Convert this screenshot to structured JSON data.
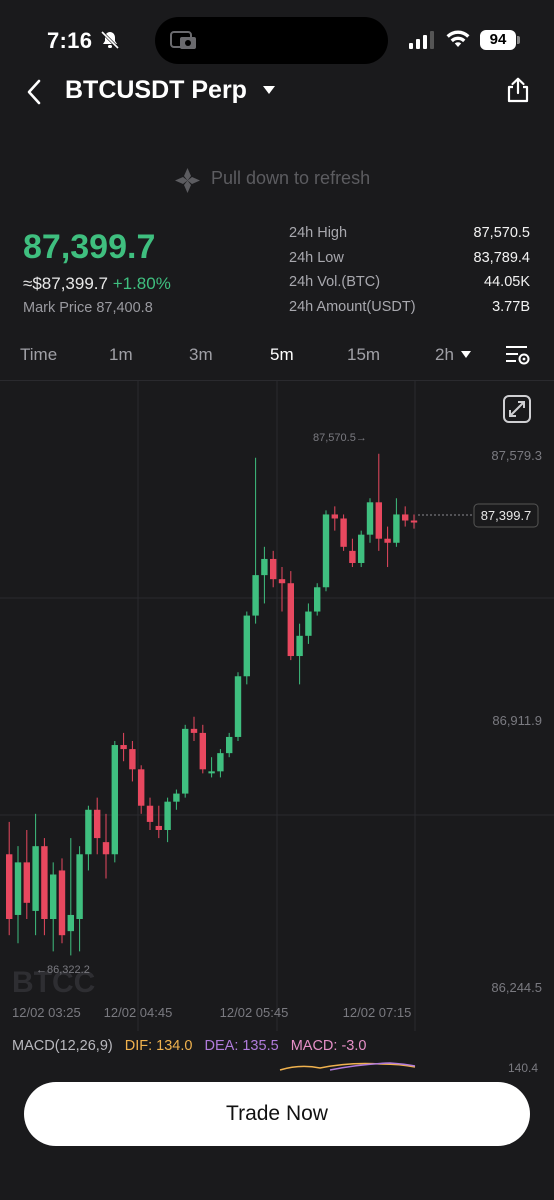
{
  "status_bar": {
    "time": "7:16",
    "battery": "94"
  },
  "header": {
    "title": "BTCUSDT Perp"
  },
  "refresh": {
    "text": "Pull down to refresh"
  },
  "price": {
    "last": "87,399.7",
    "approx": "≈$87,399.7",
    "change": "+1.80%",
    "mark": "Mark Price 87,400.8"
  },
  "stats": [
    {
      "label": "24h High",
      "value": "87,570.5"
    },
    {
      "label": "24h Low",
      "value": "83,789.4"
    },
    {
      "label": "24h Vol.(BTC)",
      "value": "44.05K"
    },
    {
      "label": "24h Amount(USDT)",
      "value": "3.77B"
    }
  ],
  "intervals": [
    "Time",
    "1m",
    "3m",
    "5m",
    "15m",
    "2h"
  ],
  "active_interval": "5m",
  "chart_data": {
    "type": "candlestick",
    "y_ticks": [
      "87,579.3",
      "86,911.9",
      "86,244.5"
    ],
    "x_ticks": [
      "12/02 03:25",
      "12/02 04:45",
      "12/02 05:45",
      "12/02 07:15"
    ],
    "high_marker": "87,570.5→",
    "low_marker": "←86,322.2",
    "last_price_tag": "87,399.7",
    "watermark": "BTCC",
    "candles": [
      {
        "o": 86580,
        "h": 86660,
        "l": 86380,
        "c": 86420
      },
      {
        "o": 86430,
        "h": 86600,
        "l": 86360,
        "c": 86560
      },
      {
        "o": 86560,
        "h": 86640,
        "l": 86420,
        "c": 86460
      },
      {
        "o": 86440,
        "h": 86680,
        "l": 86380,
        "c": 86600
      },
      {
        "o": 86600,
        "h": 86620,
        "l": 86380,
        "c": 86420
      },
      {
        "o": 86420,
        "h": 86560,
        "l": 86340,
        "c": 86530
      },
      {
        "o": 86540,
        "h": 86570,
        "l": 86360,
        "c": 86380
      },
      {
        "o": 86390,
        "h": 86620,
        "l": 86330,
        "c": 86430
      },
      {
        "o": 86420,
        "h": 86600,
        "l": 86340,
        "c": 86580
      },
      {
        "o": 86580,
        "h": 86700,
        "l": 86540,
        "c": 86690
      },
      {
        "o": 86690,
        "h": 86720,
        "l": 86580,
        "c": 86620
      },
      {
        "o": 86610,
        "h": 86680,
        "l": 86520,
        "c": 86580
      },
      {
        "o": 86580,
        "h": 86860,
        "l": 86560,
        "c": 86850
      },
      {
        "o": 86850,
        "h": 86880,
        "l": 86810,
        "c": 86840
      },
      {
        "o": 86840,
        "h": 86860,
        "l": 86760,
        "c": 86790
      },
      {
        "o": 86790,
        "h": 86800,
        "l": 86680,
        "c": 86700
      },
      {
        "o": 86700,
        "h": 86720,
        "l": 86640,
        "c": 86660
      },
      {
        "o": 86650,
        "h": 86700,
        "l": 86620,
        "c": 86640
      },
      {
        "o": 86640,
        "h": 86720,
        "l": 86610,
        "c": 86710
      },
      {
        "o": 86710,
        "h": 86740,
        "l": 86690,
        "c": 86730
      },
      {
        "o": 86730,
        "h": 86900,
        "l": 86720,
        "c": 86890
      },
      {
        "o": 86890,
        "h": 86920,
        "l": 86860,
        "c": 86880
      },
      {
        "o": 86880,
        "h": 86900,
        "l": 86780,
        "c": 86790
      },
      {
        "o": 86780,
        "h": 86820,
        "l": 86770,
        "c": 86785
      },
      {
        "o": 86785,
        "h": 86840,
        "l": 86770,
        "c": 86830
      },
      {
        "o": 86830,
        "h": 86880,
        "l": 86820,
        "c": 86870
      },
      {
        "o": 86870,
        "h": 87030,
        "l": 86860,
        "c": 87020
      },
      {
        "o": 87020,
        "h": 87180,
        "l": 87000,
        "c": 87170
      },
      {
        "o": 87170,
        "h": 87560,
        "l": 87150,
        "c": 87270
      },
      {
        "o": 87270,
        "h": 87340,
        "l": 87200,
        "c": 87310
      },
      {
        "o": 87310,
        "h": 87330,
        "l": 87240,
        "c": 87260
      },
      {
        "o": 87260,
        "h": 87290,
        "l": 87180,
        "c": 87250
      },
      {
        "o": 87250,
        "h": 87280,
        "l": 87060,
        "c": 87070
      },
      {
        "o": 87070,
        "h": 87150,
        "l": 87000,
        "c": 87120
      },
      {
        "o": 87120,
        "h": 87200,
        "l": 87100,
        "c": 87180
      },
      {
        "o": 87180,
        "h": 87250,
        "l": 87170,
        "c": 87240
      },
      {
        "o": 87240,
        "h": 87430,
        "l": 87230,
        "c": 87420
      },
      {
        "o": 87420,
        "h": 87440,
        "l": 87380,
        "c": 87410
      },
      {
        "o": 87410,
        "h": 87420,
        "l": 87330,
        "c": 87340
      },
      {
        "o": 87330,
        "h": 87360,
        "l": 87290,
        "c": 87300
      },
      {
        "o": 87300,
        "h": 87380,
        "l": 87290,
        "c": 87370
      },
      {
        "o": 87370,
        "h": 87460,
        "l": 87350,
        "c": 87450
      },
      {
        "o": 87450,
        "h": 87570,
        "l": 87330,
        "c": 87360
      },
      {
        "o": 87360,
        "h": 87390,
        "l": 87290,
        "c": 87350
      },
      {
        "o": 87350,
        "h": 87460,
        "l": 87340,
        "c": 87420
      },
      {
        "o": 87420,
        "h": 87440,
        "l": 87390,
        "c": 87405
      },
      {
        "o": 87405,
        "h": 87420,
        "l": 87385,
        "c": 87400
      }
    ]
  },
  "macd": {
    "label": "MACD(12,26,9)",
    "dif": "DIF: 134.0",
    "dea": "DEA: 135.5",
    "macd": "MACD: -3.0",
    "partial_value": "140.4"
  },
  "colors": {
    "up": "#3fbf7f",
    "down": "#e8485f",
    "dif": "#f0b24e",
    "dea": "#b07bdb",
    "macd": "#e690c8"
  },
  "trade_button": {
    "label": "Trade Now"
  }
}
